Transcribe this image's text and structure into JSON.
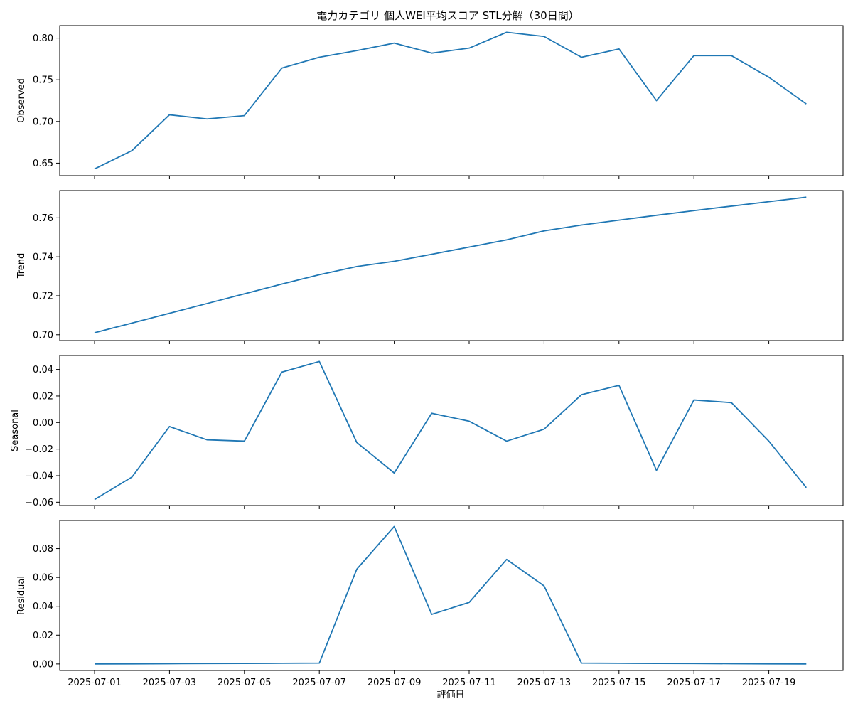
{
  "title": "電力カテゴリ 個人WEI平均スコア STL分解（30日間）",
  "xlabel": "評価日",
  "colors": {
    "line": "#1f77b4",
    "frame": "#000000"
  },
  "chart_data": [
    {
      "type": "line",
      "ylabel": "Observed",
      "ylim": [
        0.635,
        0.815
      ],
      "yticks": [
        0.65,
        0.7,
        0.75,
        0.8
      ],
      "ytick_labels": [
        "0.65",
        "0.70",
        "0.75",
        "0.80"
      ],
      "x": [
        "2025-07-01",
        "2025-07-02",
        "2025-07-03",
        "2025-07-04",
        "2025-07-05",
        "2025-07-06",
        "2025-07-07",
        "2025-07-08",
        "2025-07-09",
        "2025-07-10",
        "2025-07-11",
        "2025-07-12",
        "2025-07-13",
        "2025-07-14",
        "2025-07-15",
        "2025-07-16",
        "2025-07-17",
        "2025-07-18",
        "2025-07-19",
        "2025-07-20"
      ],
      "values": [
        0.643,
        0.665,
        0.708,
        0.703,
        0.707,
        0.764,
        0.777,
        0.785,
        0.794,
        0.782,
        0.788,
        0.807,
        0.802,
        0.777,
        0.787,
        0.725,
        0.779,
        0.779,
        0.753,
        0.721
      ]
    },
    {
      "type": "line",
      "ylabel": "Trend",
      "ylim": [
        0.697,
        0.774
      ],
      "yticks": [
        0.7,
        0.72,
        0.74,
        0.76
      ],
      "ytick_labels": [
        "0.70",
        "0.72",
        "0.74",
        "0.76"
      ],
      "x": [
        "2025-07-01",
        "2025-07-02",
        "2025-07-03",
        "2025-07-04",
        "2025-07-05",
        "2025-07-06",
        "2025-07-07",
        "2025-07-08",
        "2025-07-09",
        "2025-07-10",
        "2025-07-11",
        "2025-07-12",
        "2025-07-13",
        "2025-07-14",
        "2025-07-15",
        "2025-07-16",
        "2025-07-17",
        "2025-07-18",
        "2025-07-19",
        "2025-07-20"
      ],
      "values": [
        0.701,
        0.706,
        0.711,
        0.716,
        0.721,
        0.726,
        0.7308,
        0.735,
        0.7377,
        0.7413,
        0.745,
        0.7487,
        0.7533,
        0.7563,
        0.7588,
        0.7613,
        0.7637,
        0.766,
        0.7683,
        0.7706
      ]
    },
    {
      "type": "line",
      "ylabel": "Seasonal",
      "ylim": [
        -0.0625,
        0.0505
      ],
      "yticks": [
        -0.06,
        -0.04,
        -0.02,
        0.0,
        0.02,
        0.04
      ],
      "ytick_labels": [
        "−0.06",
        "−0.04",
        "−0.02",
        "0.00",
        "0.02",
        "0.04"
      ],
      "x": [
        "2025-07-01",
        "2025-07-02",
        "2025-07-03",
        "2025-07-04",
        "2025-07-05",
        "2025-07-06",
        "2025-07-07",
        "2025-07-08",
        "2025-07-09",
        "2025-07-10",
        "2025-07-11",
        "2025-07-12",
        "2025-07-13",
        "2025-07-14",
        "2025-07-15",
        "2025-07-16",
        "2025-07-17",
        "2025-07-18",
        "2025-07-19",
        "2025-07-20"
      ],
      "values": [
        -0.058,
        -0.041,
        -0.003,
        -0.013,
        -0.014,
        0.038,
        0.046,
        -0.015,
        -0.038,
        0.007,
        0.001,
        -0.014,
        -0.005,
        0.021,
        0.028,
        -0.036,
        0.017,
        0.015,
        -0.014,
        -0.049
      ]
    },
    {
      "type": "line",
      "ylabel": "Residual",
      "ylim": [
        -0.0045,
        0.0995
      ],
      "yticks": [
        0.0,
        0.02,
        0.04,
        0.06,
        0.08
      ],
      "ytick_labels": [
        "0.00",
        "0.02",
        "0.04",
        "0.06",
        "0.08"
      ],
      "x": [
        "2025-07-01",
        "2025-07-02",
        "2025-07-03",
        "2025-07-04",
        "2025-07-05",
        "2025-07-06",
        "2025-07-07",
        "2025-07-08",
        "2025-07-09",
        "2025-07-10",
        "2025-07-11",
        "2025-07-12",
        "2025-07-13",
        "2025-07-14",
        "2025-07-15",
        "2025-07-16",
        "2025-07-17",
        "2025-07-18",
        "2025-07-19",
        "2025-07-20"
      ],
      "values": [
        0.0,
        0.0001,
        0.0002,
        0.0003,
        0.0004,
        0.0005,
        0.0006,
        0.0657,
        0.0953,
        0.0344,
        0.0427,
        0.0725,
        0.0541,
        0.0006,
        0.0005,
        0.0004,
        0.0003,
        0.0002,
        0.0001,
        0.0
      ]
    }
  ],
  "xticks": [
    "2025-07-01",
    "2025-07-03",
    "2025-07-05",
    "2025-07-07",
    "2025-07-09",
    "2025-07-11",
    "2025-07-13",
    "2025-07-15",
    "2025-07-17",
    "2025-07-19"
  ]
}
